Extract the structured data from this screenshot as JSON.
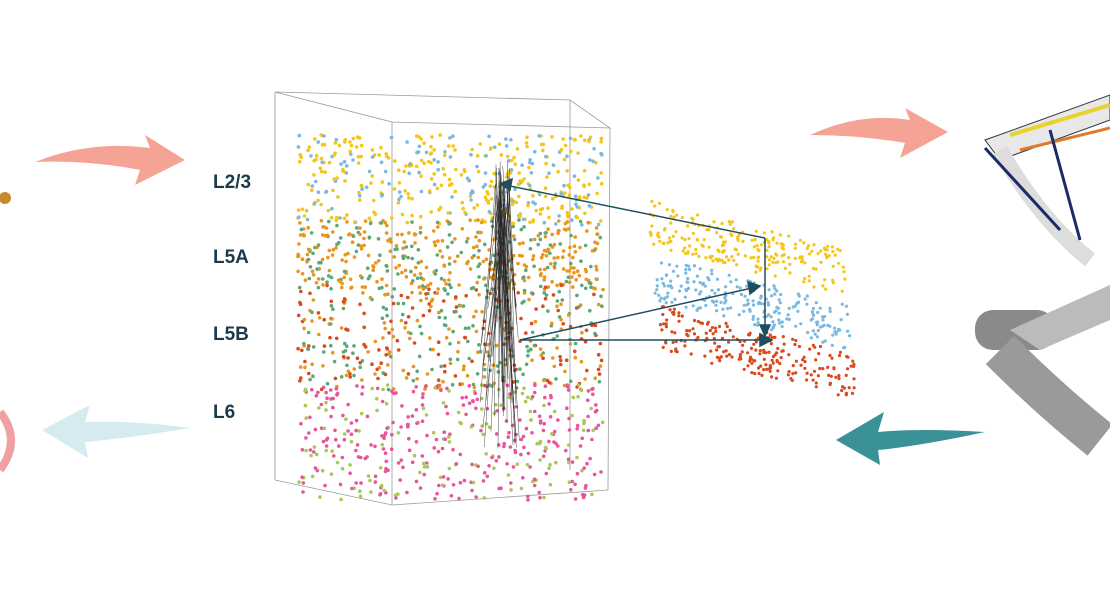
{
  "layers": [
    {
      "label": "L2/3"
    },
    {
      "label": "L5A"
    },
    {
      "label": "L5B"
    },
    {
      "label": "L6"
    }
  ]
}
